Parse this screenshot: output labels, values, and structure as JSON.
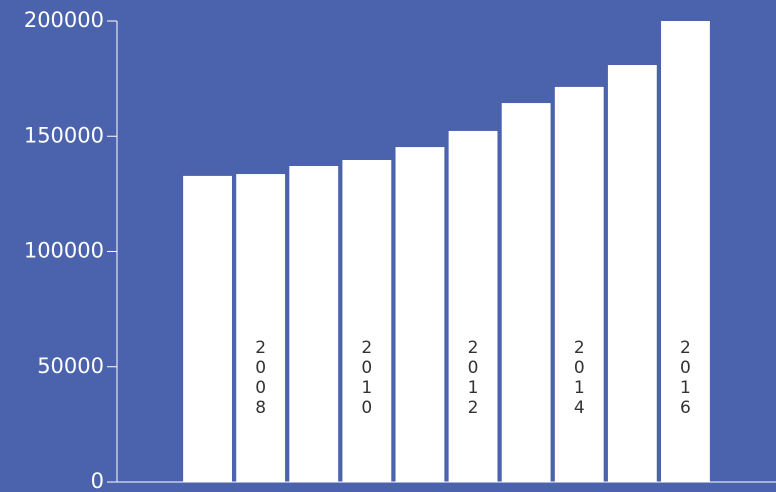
{
  "chart_data": {
    "type": "bar",
    "categories": [
      null,
      "2008",
      null,
      "2010",
      null,
      "2012",
      null,
      "2014",
      null,
      "2016"
    ],
    "values": [
      132800,
      133600,
      137100,
      139700,
      145300,
      152300,
      164400,
      171400,
      180900,
      200000
    ],
    "color": "#ffffff",
    "ylim": [
      0,
      200000
    ],
    "yticks": [
      0,
      50000,
      100000,
      150000,
      200000
    ]
  }
}
